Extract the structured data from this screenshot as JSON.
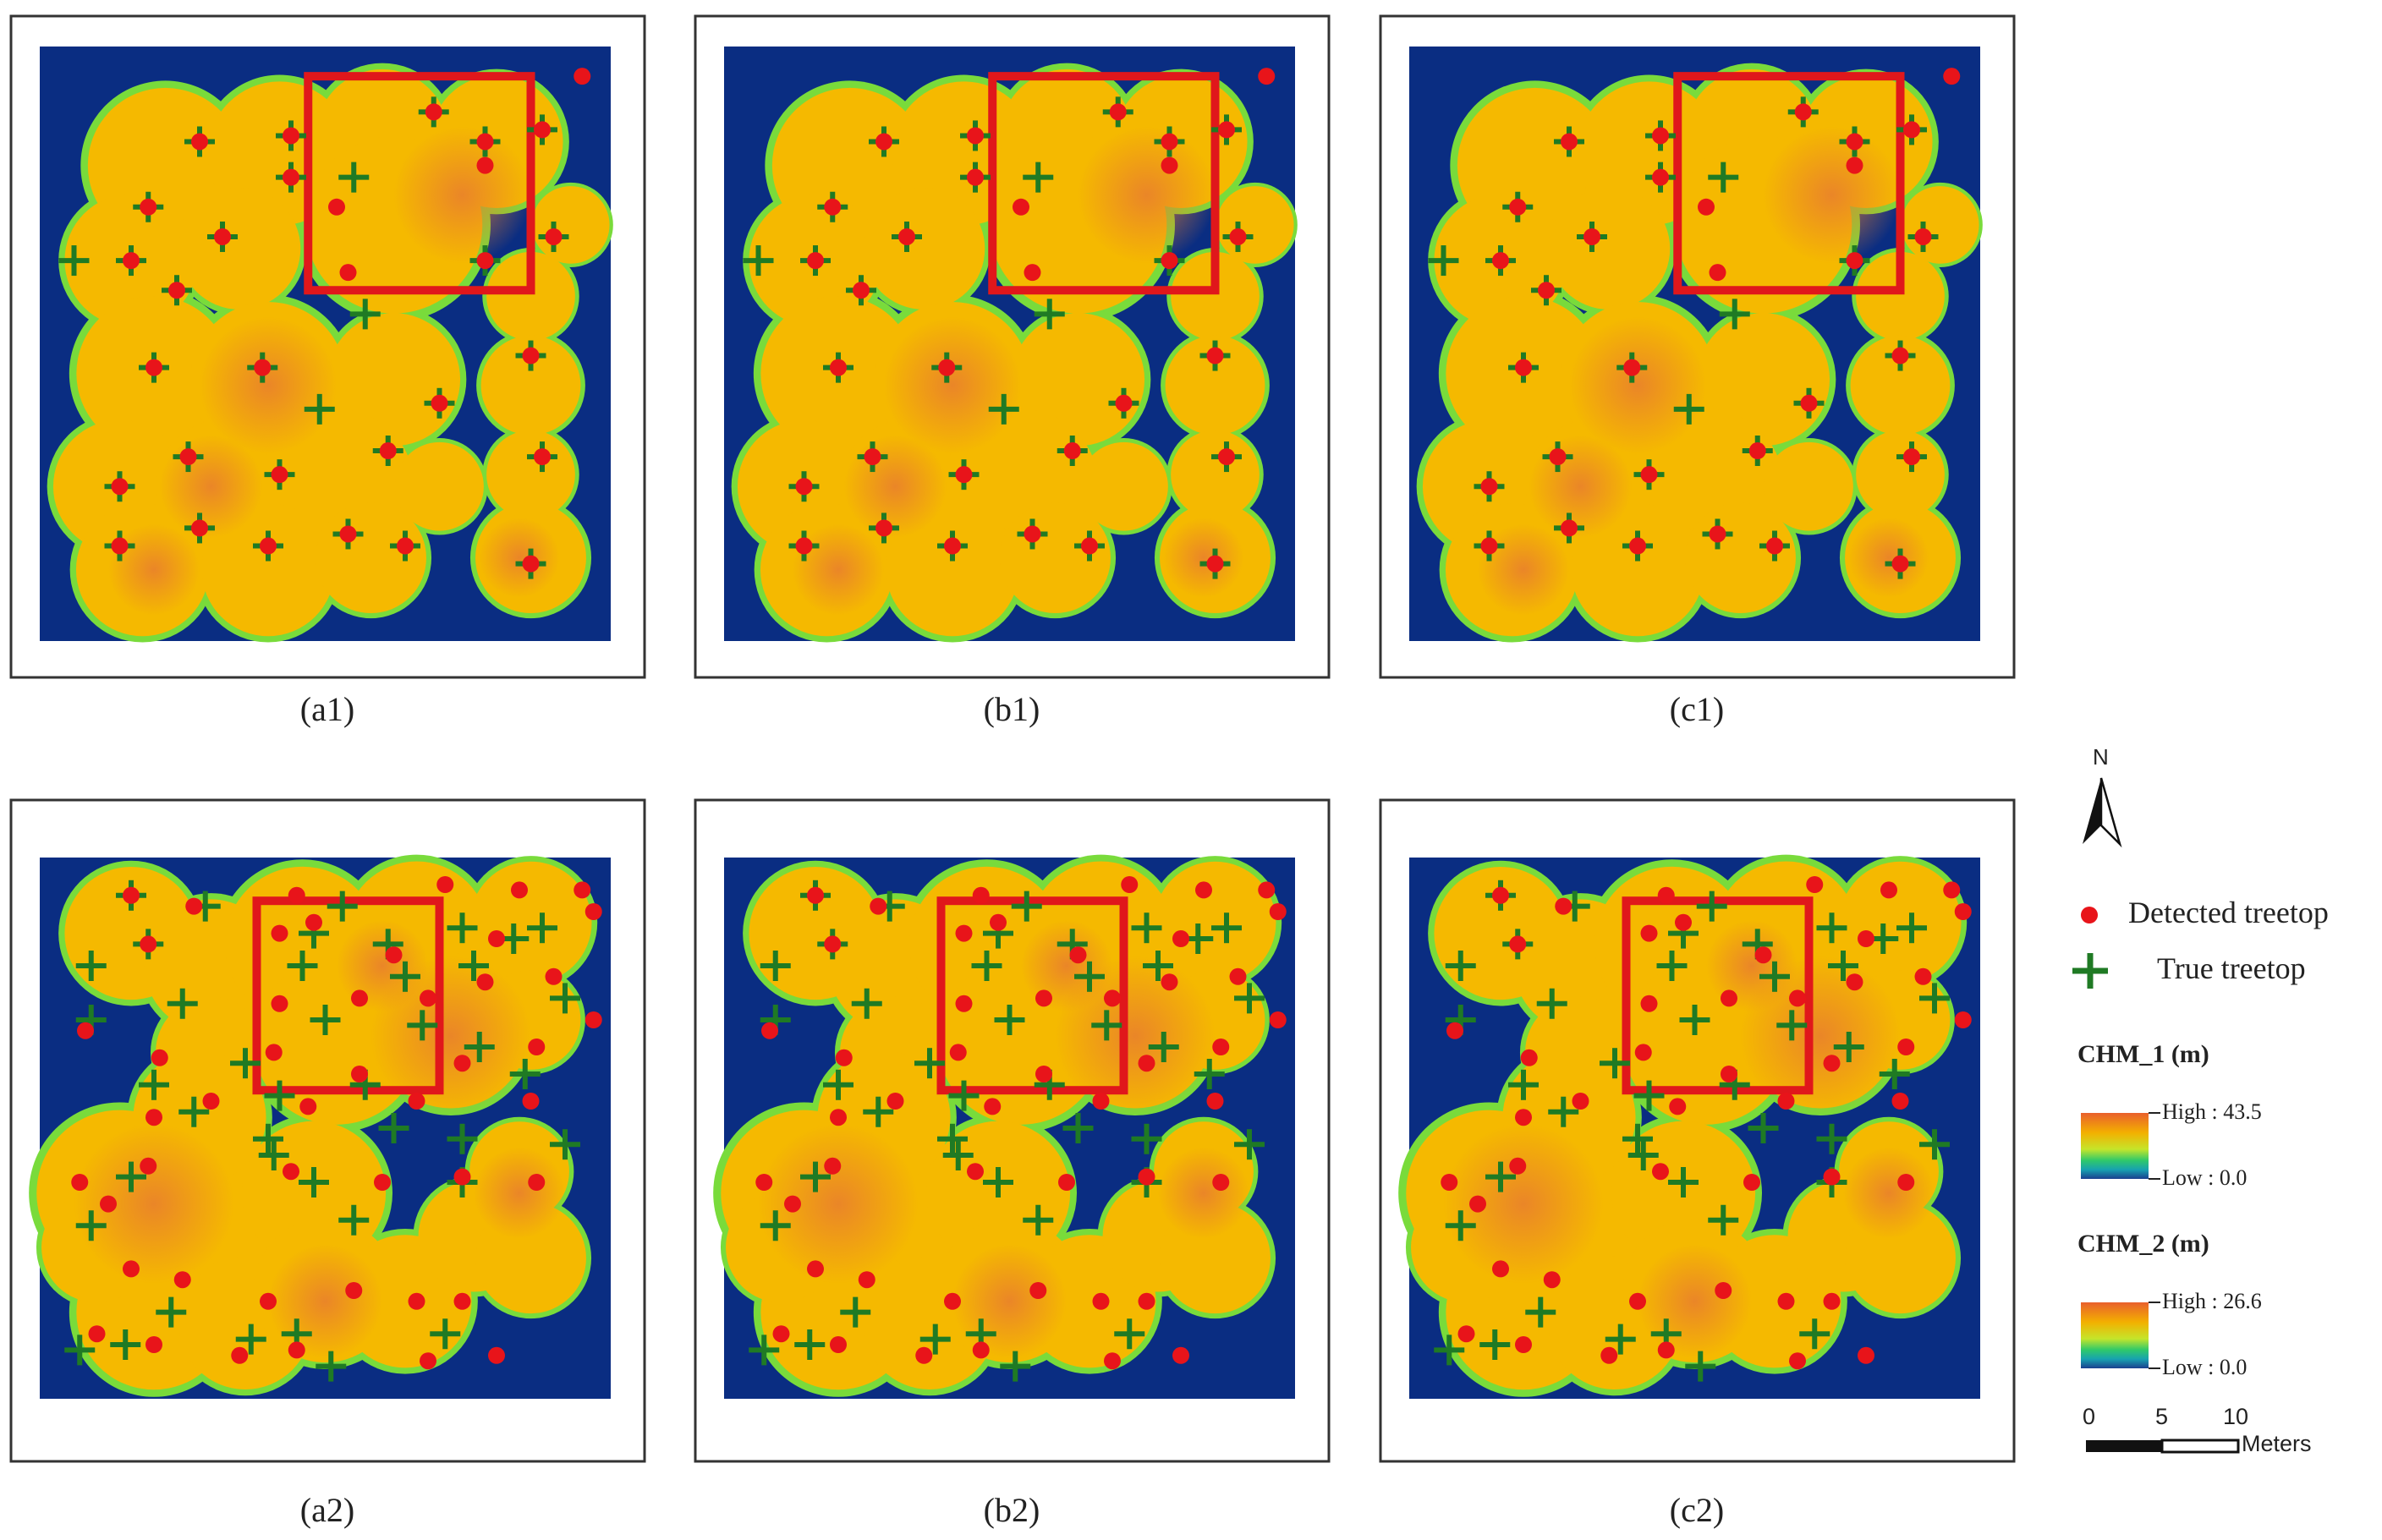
{
  "colors": {
    "background_class": "#0a2d82",
    "canopy_fill": "#f5b900",
    "canopy_core": "#e9802c",
    "canopy_edge": "#79db3b",
    "detected_treetop": "#e8141a",
    "true_treetop": "#1f7a24",
    "highlight_box": "#e0171b",
    "frame": "#333333"
  },
  "panels": [
    {
      "id": "a1",
      "caption": "(a1)",
      "row": 1
    },
    {
      "id": "b1",
      "caption": "(b1)",
      "row": 1
    },
    {
      "id": "c1",
      "caption": "(c1)",
      "row": 1
    },
    {
      "id": "a2",
      "caption": "(a2)",
      "row": 2
    },
    {
      "id": "b2",
      "caption": "(b2)",
      "row": 2
    },
    {
      "id": "c2",
      "caption": "(c2)",
      "row": 2
    }
  ],
  "legend": {
    "north_label": "N",
    "detected_label": "Detected treetop",
    "true_label": "True treetop",
    "chm1": {
      "title": "CHM_1 (m)",
      "high": "High : 43.5",
      "low": "Low : 0.0"
    },
    "chm2": {
      "title": "CHM_2 (m)",
      "high": "High : 26.6",
      "low": "Low : 0.0"
    },
    "scale": {
      "ticks": [
        "0",
        "5",
        "10"
      ],
      "unit": "Meters"
    }
  }
}
